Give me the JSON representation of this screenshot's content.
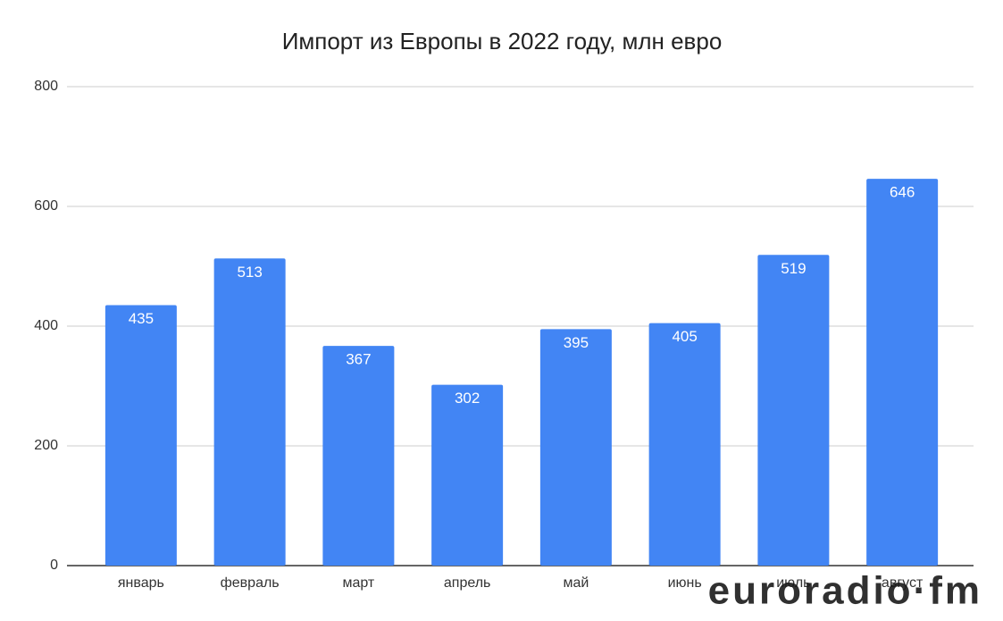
{
  "chart_data": {
    "type": "bar",
    "title": "Импорт из Европы в 2022 году, млн евро",
    "categories": [
      "январь",
      "февраль",
      "март",
      "апрель",
      "май",
      "июнь",
      "июль",
      "август"
    ],
    "values": [
      435,
      513,
      367,
      302,
      395,
      405,
      519,
      646
    ],
    "color": "#4285f4",
    "ylim": [
      0,
      800
    ],
    "yticks": [
      0,
      200,
      400,
      600,
      800
    ],
    "grid": true,
    "watermark": "euroradio·fm"
  }
}
